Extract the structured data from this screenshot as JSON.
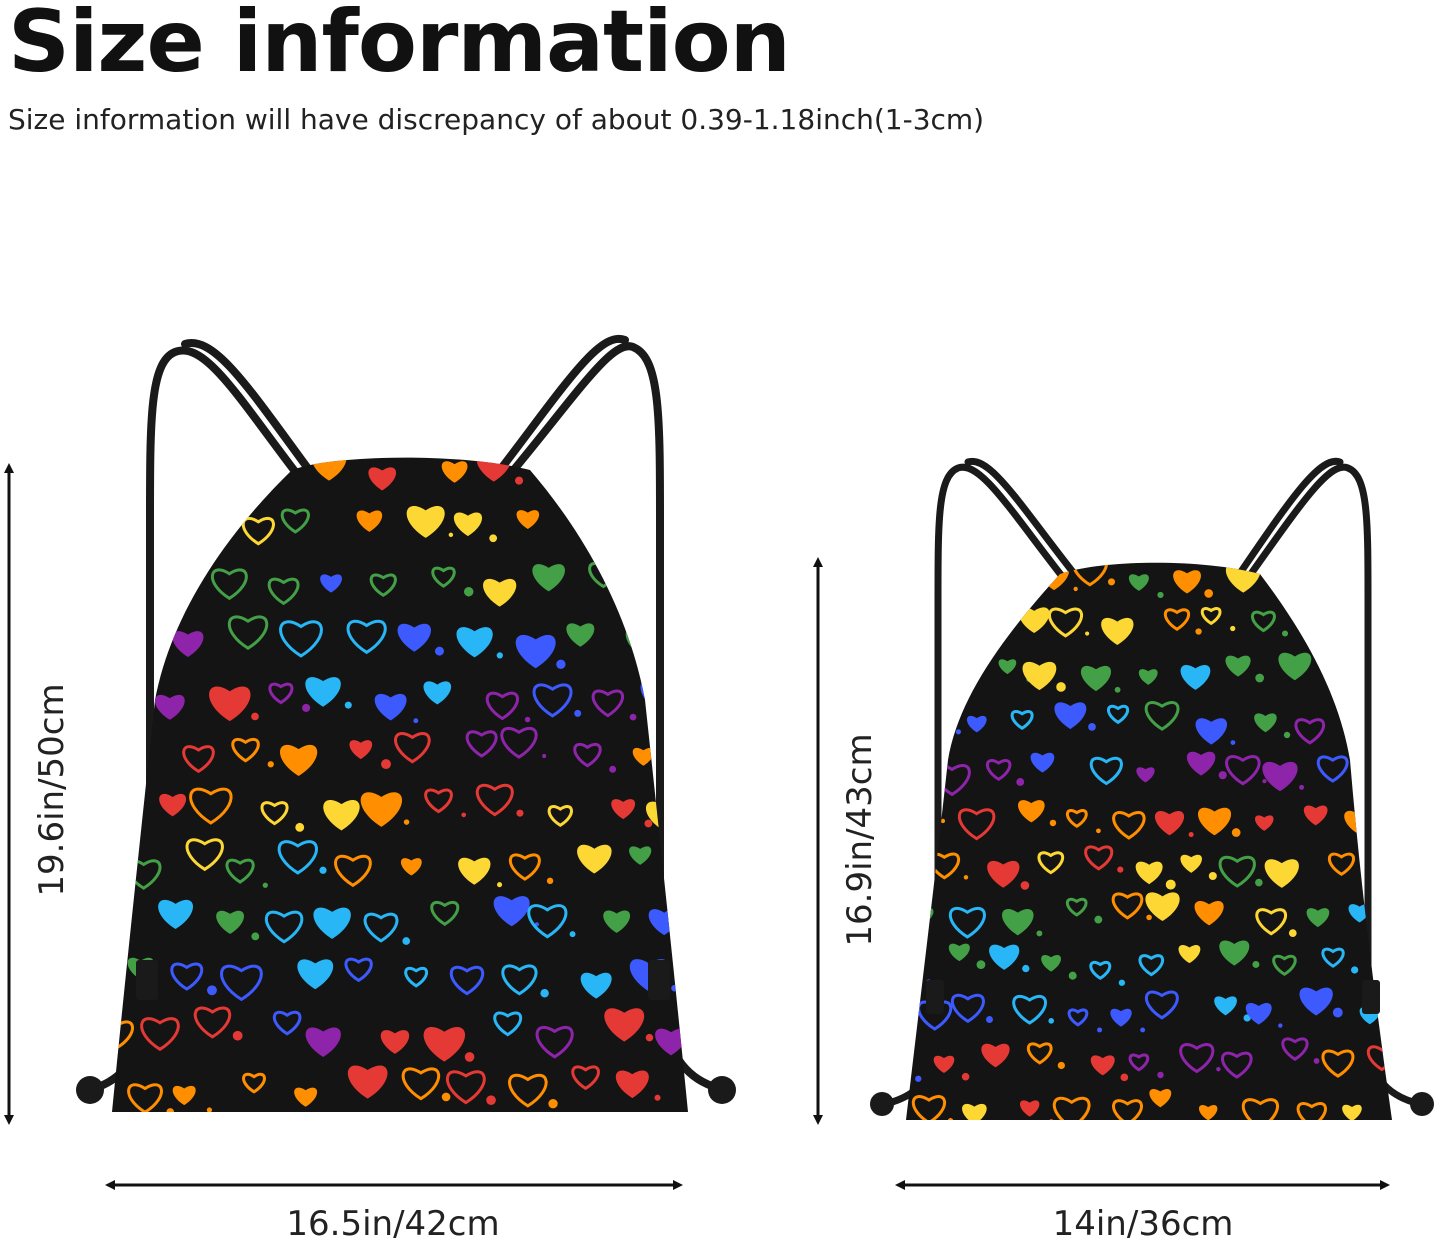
{
  "header": {
    "title": "Size information",
    "subtitle": "Size information will have discrepancy of about 0.39-1.18inch(1-3cm)"
  },
  "products": [
    {
      "height_label": "19.6in/50cm",
      "width_label": "16.5in/42cm"
    },
    {
      "height_label": "16.9in/43cm",
      "width_label": "14in/36cm"
    }
  ],
  "colors": {
    "bag_body": "#141414",
    "cord": "#1a1a1a",
    "arrow": "#111111",
    "hearts": [
      "#e53935",
      "#ff8f00",
      "#fdd835",
      "#43a047",
      "#29b6f6",
      "#3d5afe",
      "#8e24aa"
    ]
  }
}
